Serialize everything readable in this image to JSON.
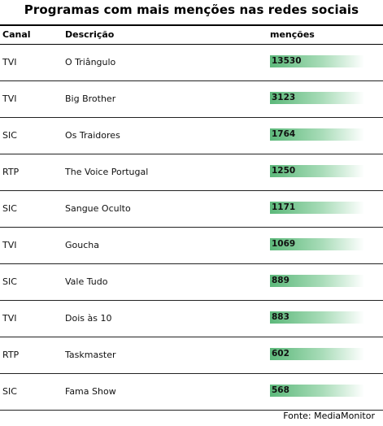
{
  "title": "Programas com mais menções nas redes sociais",
  "headers": {
    "canal": "Canal",
    "descricao": "Descrição",
    "mencoes": "menções"
  },
  "rows": [
    {
      "canal": "TVI",
      "descricao": "O Triângulo",
      "mencoes": 13530
    },
    {
      "canal": "TVI",
      "descricao": "Big Brother",
      "mencoes": 3123
    },
    {
      "canal": "SIC",
      "descricao": "Os Traidores",
      "mencoes": 1764
    },
    {
      "canal": "RTP",
      "descricao": "The Voice Portugal",
      "mencoes": 1250
    },
    {
      "canal": "SIC",
      "descricao": "Sangue Oculto",
      "mencoes": 1171
    },
    {
      "canal": "TVI",
      "descricao": "Goucha",
      "mencoes": 1069
    },
    {
      "canal": "SIC",
      "descricao": "Vale Tudo",
      "mencoes": 889
    },
    {
      "canal": "TVI",
      "descricao": "Dois às 10",
      "mencoes": 883
    },
    {
      "canal": "RTP",
      "descricao": "Taskmaster",
      "mencoes": 602
    },
    {
      "canal": "SIC",
      "descricao": "Fama Show",
      "mencoes": 568
    }
  ],
  "source": "Fonte:  MediaMonitor",
  "colors": {
    "bar_start": "#5cb87a",
    "bar_end": "#ffffff"
  }
}
